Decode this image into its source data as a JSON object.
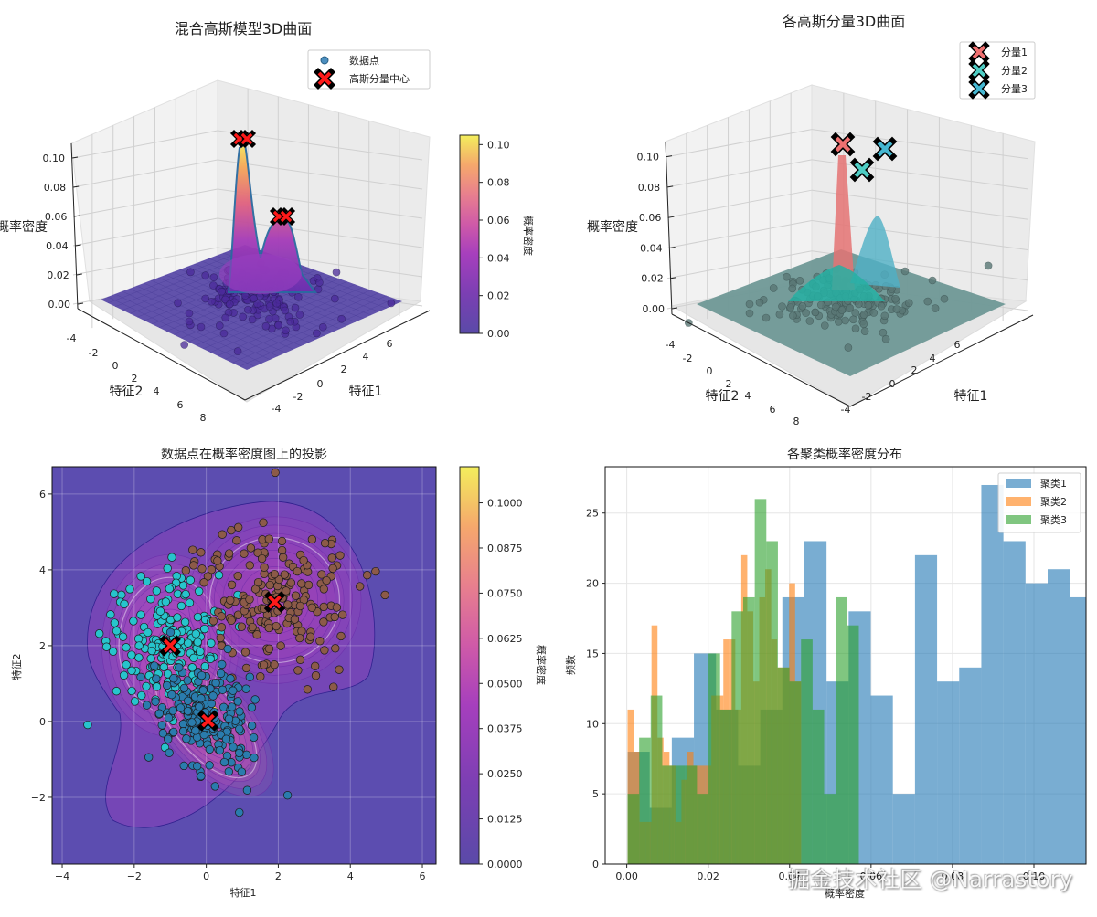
{
  "chart_data": [
    {
      "id": "gmm-3d",
      "type": "surface3d",
      "title": "混合高斯模型3D曲面",
      "xlabel": "特征1",
      "ylabel": "特征2",
      "zlabel": "概率密度",
      "x_ticks": [
        "-4",
        "-2",
        "0",
        "2",
        "4",
        "6"
      ],
      "y_ticks": [
        "-4",
        "-2",
        "0",
        "2",
        "4",
        "6",
        "8"
      ],
      "z_ticks": [
        "0.00",
        "0.02",
        "0.04",
        "0.06",
        "0.08",
        "0.10"
      ],
      "zlim": [
        0,
        0.11
      ],
      "colormap": "plasma",
      "colorbar": {
        "label": "概率密度",
        "ticks": [
          "0.00",
          "0.02",
          "0.04",
          "0.06",
          "0.08",
          "0.10"
        ],
        "range": [
          0,
          0.105
        ]
      },
      "legend": {
        "position": "top-right",
        "entries": [
          {
            "label": "数据点",
            "marker": "circle",
            "color": "#4c8fbf"
          },
          {
            "label": "高斯分量中心",
            "marker": "x",
            "color": "#ff2020"
          }
        ]
      },
      "peaks": [
        {
          "name": "peak-1",
          "height": 0.11
        },
        {
          "name": "peak-2",
          "height": 0.06
        }
      ]
    },
    {
      "id": "components-3d",
      "type": "surface3d",
      "title": "各高斯分量3D曲面",
      "xlabel": "特征1",
      "ylabel": "特征2",
      "zlabel": "概率密度",
      "x_ticks": [
        "-4",
        "-2",
        "0",
        "2",
        "4",
        "6"
      ],
      "y_ticks": [
        "-4",
        "-2",
        "0",
        "2",
        "4",
        "6",
        "8"
      ],
      "z_ticks": [
        "0.00",
        "0.02",
        "0.04",
        "0.06",
        "0.08",
        "0.10"
      ],
      "zlim": [
        0,
        0.11
      ],
      "legend": {
        "position": "top-right",
        "entries": [
          {
            "label": "分量1",
            "marker": "x",
            "color": "#f07070"
          },
          {
            "label": "分量2",
            "marker": "x",
            "color": "#4ecdc4"
          },
          {
            "label": "分量3",
            "marker": "x",
            "color": "#45b7d1"
          }
        ]
      },
      "components": [
        {
          "name": "分量1",
          "color": "#e57373",
          "peak": 0.105
        },
        {
          "name": "分量2",
          "color": "#26b5a8",
          "peak": 0.02
        },
        {
          "name": "分量3",
          "color": "#45b7d1",
          "peak": 0.06
        }
      ]
    },
    {
      "id": "projection",
      "type": "scatter",
      "title": "数据点在概率密度图上的投影",
      "xlabel": "特征1",
      "ylabel": "特征2",
      "xlim": [
        -4.28,
        6.38
      ],
      "ylim": [
        -3.76,
        6.72
      ],
      "x_ticks": [
        -4,
        -2,
        0,
        2,
        4,
        6
      ],
      "y_ticks": [
        -2,
        0,
        2,
        4,
        6
      ],
      "grid": true,
      "colorbar": {
        "label": "概率密度",
        "range": [
          0,
          0.11
        ],
        "ticks": [
          "0.0000",
          "0.0125",
          "0.0250",
          "0.0375",
          "0.0500",
          "0.0625",
          "0.0750",
          "0.0875",
          "0.1000"
        ],
        "tick_values": [
          0,
          0.0125,
          0.025,
          0.0375,
          0.05,
          0.0625,
          0.075,
          0.0875,
          0.1
        ]
      },
      "clusters": [
        {
          "name": "cluster-cyan",
          "color": "#27c4cc",
          "center": [
            -1.0,
            2.0
          ],
          "spread": [
            0.75,
            1.0
          ],
          "n": 190
        },
        {
          "name": "cluster-brown",
          "color": "#8c5a48",
          "center": [
            1.9,
            3.2
          ],
          "spread": [
            1.0,
            0.95
          ],
          "n": 200
        },
        {
          "name": "cluster-blue",
          "color": "#2a7cad",
          "center": [
            0.05,
            0.0
          ],
          "spread": [
            0.75,
            0.8
          ],
          "n": 210
        }
      ],
      "centers": [
        [
          -1.0,
          2.0
        ],
        [
          1.9,
          3.15
        ],
        [
          0.05,
          0.02
        ]
      ]
    },
    {
      "id": "histogram",
      "type": "bar",
      "title": "各聚类概率密度分布",
      "xlabel": "概率密度",
      "ylabel": "频数",
      "xlim": [
        -0.0053,
        0.1128
      ],
      "ylim": [
        0,
        28.3
      ],
      "x_ticks": [
        "0.00",
        "0.02",
        "0.04",
        "0.06",
        "0.08",
        "0.10"
      ],
      "x_tick_values": [
        0,
        0.02,
        0.04,
        0.06,
        0.08,
        0.1
      ],
      "y_ticks": [
        0,
        5,
        10,
        15,
        20,
        25
      ],
      "grid": true,
      "legend": {
        "position": "top-right",
        "entries": [
          {
            "label": "聚类1",
            "color": "#1f77b4"
          },
          {
            "label": "聚类2",
            "color": "#ff7f0e"
          },
          {
            "label": "聚类3",
            "color": "#2ca02c"
          }
        ]
      },
      "series": [
        {
          "name": "聚类1",
          "color": "#1f77b4",
          "bin_start": 0.0002,
          "bin_width": 0.00543,
          "values": [
            8,
            4,
            9,
            15,
            11,
            7,
            11,
            19,
            23,
            13,
            18,
            12,
            5,
            22,
            13,
            14,
            27,
            23,
            20,
            21,
            19,
            13,
            17,
            11
          ]
        },
        {
          "name": "聚类2",
          "color": "#ff7f0e",
          "bin_start": 0.0002,
          "bin_width": 0.00147,
          "values": [
            11,
            8,
            3,
            3,
            17,
            9,
            8,
            7,
            3,
            6,
            8,
            7,
            7,
            7,
            12,
            12,
            16,
            16,
            11,
            22,
            18,
            13,
            19,
            21,
            16,
            14,
            14,
            20,
            13
          ]
        },
        {
          "name": "聚类3",
          "color": "#2ca02c",
          "bin_start": 0.0002,
          "bin_width": 0.00284,
          "values": [
            5,
            9,
            12,
            7,
            7,
            7,
            5,
            15,
            11,
            18,
            19,
            26,
            23,
            14,
            13,
            16,
            11,
            5,
            19,
            17
          ]
        }
      ]
    }
  ],
  "watermark": "掘金技术社区 @Narrastory"
}
